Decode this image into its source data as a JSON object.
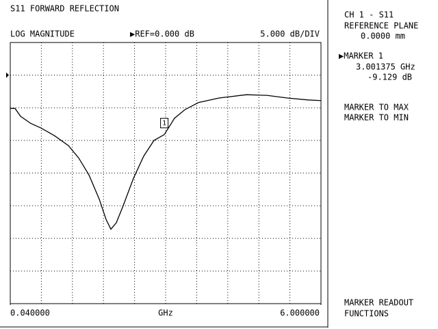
{
  "chart_data": {
    "type": "line",
    "title": "S11 FORWARD REFLECTION",
    "format_label": "LOG MAGNITUDE",
    "reference_label": "▶REF=0.000 dB",
    "scale_label": "5.000 dB/DIV",
    "x_label": "GHz",
    "reference_level": 0,
    "xlim": [
      0.04,
      6.0
    ],
    "ylim": [
      -35,
      5
    ],
    "xticks": [
      {
        "value": 0.04,
        "label": "0.040000"
      },
      {
        "value": 6.0,
        "label": "6.000000"
      }
    ],
    "x_divisions": 10,
    "y_divisions": 8,
    "grid": true,
    "series": [
      {
        "name": "S11",
        "color": "#000000",
        "x": [
          0.04,
          0.132,
          0.237,
          0.434,
          0.631,
          0.893,
          1.156,
          1.353,
          1.55,
          1.747,
          1.878,
          1.97,
          2.075,
          2.206,
          2.403,
          2.6,
          2.797,
          2.995,
          3.191,
          3.388,
          3.65,
          4.044,
          4.569,
          4.963,
          5.357,
          5.75,
          6.0
        ],
        "values": [
          -5.1,
          -5.1,
          -6.3,
          -7.4,
          -8.1,
          -9.3,
          -10.8,
          -12.7,
          -15.3,
          -19.0,
          -22.1,
          -23.6,
          -22.6,
          -20.0,
          -15.8,
          -12.4,
          -10.0,
          -9.1,
          -6.6,
          -5.3,
          -4.2,
          -3.5,
          -3.0,
          -3.1,
          -3.5,
          -3.8,
          -3.9
        ]
      }
    ],
    "marker": {
      "label": "1",
      "x": 3.001375,
      "y": -9.129
    }
  },
  "panel": {
    "channel": "CH 1 - S11",
    "plane_title": "REFERENCE PLANE",
    "plane_value": "0.0000 mm",
    "marker_title": "▶MARKER 1",
    "marker_freq": "3.001375 GHz",
    "marker_value": "-9.129 dB",
    "softkeys": [
      "MARKER TO MAX",
      "MARKER TO MIN"
    ],
    "bottom_softkeys": [
      "MARKER READOUT",
      "FUNCTIONS"
    ]
  }
}
